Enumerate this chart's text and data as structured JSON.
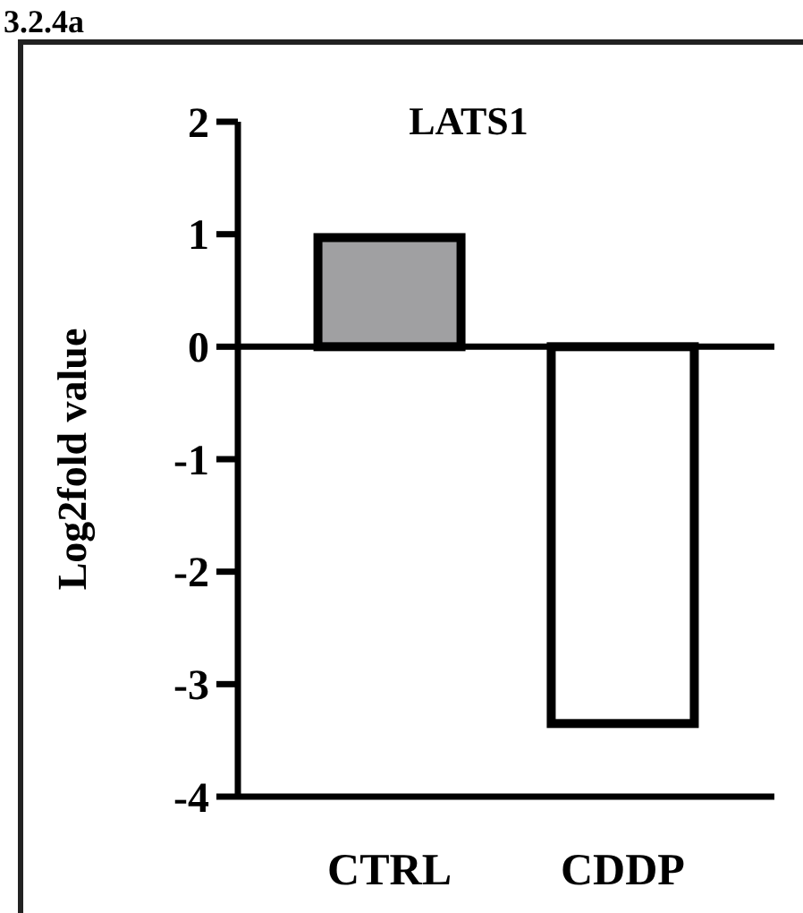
{
  "chart_data": {
    "type": "bar",
    "title": "LATS1",
    "ylabel": "Log2fold value",
    "categories": [
      "CTRL",
      "CDDP"
    ],
    "values": [
      0.97,
      -3.35
    ],
    "colors": [
      "#a0a0a2",
      "#ffffff"
    ],
    "ylim": [
      -4,
      2
    ],
    "yticks": [
      -4,
      -3,
      -2,
      -1,
      0,
      1,
      2
    ],
    "annotations": [
      "3.2.4a"
    ]
  }
}
